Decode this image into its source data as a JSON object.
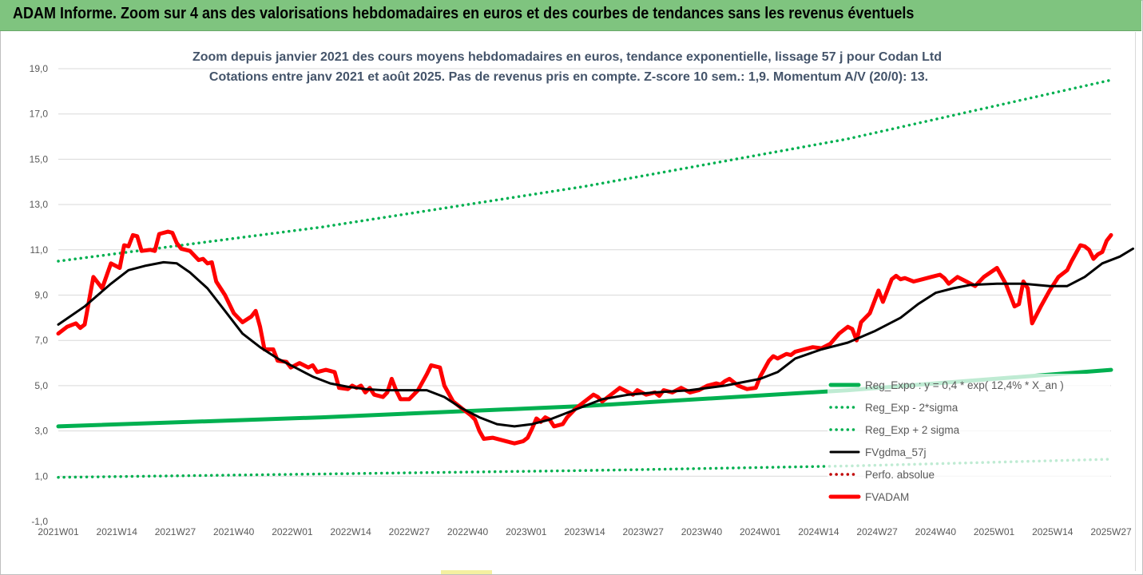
{
  "banner": {
    "title": "ADAM Informe. Zoom sur 4 ans des valorisations hebdomadaires en euros et des courbes de tendances sans les revenus éventuels"
  },
  "colors": {
    "banner_bg": "#7fc47f",
    "reg": "#00b050",
    "smooth": "#000000",
    "price": "#ff0000",
    "perfo": "#c00000",
    "title": "#44546a",
    "axis_text": "#595959"
  },
  "chart_data": {
    "type": "line",
    "title": "Zoom depuis janvier 2021 des cours moyens hebdomadaires en euros, tendance exponentielle, lissage 57 j pour Codan Ltd",
    "subtitle": "Cotations entre janv 2021 et août 2025. Pas de revenus pris en compte. Z-score 10 sem.: 1,9. Momentum A/V (20/0): 13.",
    "xlabel": "",
    "ylabel": "",
    "ylim": [
      -1,
      19
    ],
    "y_ticks": [
      "-1,0",
      "1,0",
      "3,0",
      "5,0",
      "7,0",
      "9,0",
      "11,0",
      "13,0",
      "15,0",
      "17,0",
      "19,0"
    ],
    "x_ticks": [
      "2021W01",
      "2021W14",
      "2021W27",
      "2021W40",
      "2022W01",
      "2022W14",
      "2022W27",
      "2022W40",
      "2023W01",
      "2023W14",
      "2023W27",
      "2023W40",
      "2024W01",
      "2024W14",
      "2024W27",
      "2024W40",
      "2025W01",
      "2025W14",
      "2025W27"
    ],
    "x_range_weeks": [
      0,
      240
    ],
    "grid": true,
    "legend_position": "lower-right",
    "series": [
      {
        "name": "Reg_Expo : y = 0,4 * exp( 12,4% * X_an )",
        "style": "solid-thick",
        "color": "#00b050",
        "points": [
          [
            0,
            3.2
          ],
          [
            60,
            3.6
          ],
          [
            120,
            4.1
          ],
          [
            180,
            4.8
          ],
          [
            240,
            5.7
          ]
        ]
      },
      {
        "name": "Reg_Exp - 2*sigma",
        "style": "dotted",
        "color": "#00b050",
        "points": [
          [
            0,
            0.95
          ],
          [
            60,
            1.1
          ],
          [
            120,
            1.25
          ],
          [
            180,
            1.45
          ],
          [
            240,
            1.75
          ]
        ]
      },
      {
        "name": "Reg_Exp + 2 sigma",
        "style": "dotted",
        "color": "#00b050",
        "points": [
          [
            0,
            10.5
          ],
          [
            60,
            12.0
          ],
          [
            120,
            13.8
          ],
          [
            180,
            15.9
          ],
          [
            240,
            18.5
          ]
        ]
      },
      {
        "name": "FVgdma_57j",
        "style": "solid",
        "color": "#000000",
        "points": [
          [
            0,
            7.7
          ],
          [
            6,
            8.5
          ],
          [
            12,
            9.5
          ],
          [
            16,
            10.1
          ],
          [
            20,
            10.3
          ],
          [
            24,
            10.45
          ],
          [
            27,
            10.4
          ],
          [
            30,
            10.0
          ],
          [
            34,
            9.3
          ],
          [
            38,
            8.3
          ],
          [
            42,
            7.3
          ],
          [
            46,
            6.7
          ],
          [
            50,
            6.2
          ],
          [
            54,
            5.8
          ],
          [
            58,
            5.4
          ],
          [
            62,
            5.1
          ],
          [
            66,
            4.95
          ],
          [
            70,
            4.85
          ],
          [
            74,
            4.8
          ],
          [
            80,
            4.8
          ],
          [
            84,
            4.8
          ],
          [
            88,
            4.5
          ],
          [
            92,
            4.0
          ],
          [
            96,
            3.6
          ],
          [
            100,
            3.3
          ],
          [
            104,
            3.2
          ],
          [
            108,
            3.3
          ],
          [
            112,
            3.5
          ],
          [
            116,
            3.8
          ],
          [
            120,
            4.1
          ],
          [
            124,
            4.4
          ],
          [
            130,
            4.6
          ],
          [
            136,
            4.7
          ],
          [
            144,
            4.8
          ],
          [
            152,
            5.0
          ],
          [
            160,
            5.3
          ],
          [
            164,
            5.6
          ],
          [
            168,
            6.2
          ],
          [
            174,
            6.6
          ],
          [
            180,
            6.9
          ],
          [
            186,
            7.4
          ],
          [
            192,
            8.0
          ],
          [
            196,
            8.6
          ],
          [
            200,
            9.1
          ],
          [
            204,
            9.3
          ],
          [
            208,
            9.45
          ],
          [
            214,
            9.5
          ],
          [
            220,
            9.5
          ],
          [
            226,
            9.4
          ],
          [
            230,
            9.4
          ],
          [
            234,
            9.8
          ],
          [
            238,
            10.4
          ],
          [
            242,
            10.7
          ],
          [
            245,
            11.05
          ]
        ]
      },
      {
        "name": "Perfo. absolue",
        "style": "dotted",
        "color": "#c00000",
        "points": []
      },
      {
        "name": "FVADAM",
        "style": "solid-thick",
        "color": "#ff0000",
        "points": [
          [
            0,
            7.3
          ],
          [
            2,
            7.6
          ],
          [
            4,
            7.75
          ],
          [
            5,
            7.55
          ],
          [
            6,
            7.7
          ],
          [
            8,
            9.8
          ],
          [
            10,
            9.3
          ],
          [
            12,
            10.4
          ],
          [
            14,
            10.2
          ],
          [
            15,
            11.2
          ],
          [
            16,
            11.15
          ],
          [
            17,
            11.65
          ],
          [
            18,
            11.6
          ],
          [
            19,
            10.95
          ],
          [
            21,
            11.0
          ],
          [
            22,
            10.95
          ],
          [
            23,
            11.7
          ],
          [
            25,
            11.8
          ],
          [
            26,
            11.75
          ],
          [
            27,
            11.3
          ],
          [
            28,
            11.05
          ],
          [
            30,
            10.95
          ],
          [
            32,
            10.55
          ],
          [
            33,
            10.6
          ],
          [
            34,
            10.4
          ],
          [
            35,
            10.45
          ],
          [
            36,
            9.6
          ],
          [
            38,
            9.0
          ],
          [
            40,
            8.2
          ],
          [
            42,
            7.8
          ],
          [
            44,
            8.05
          ],
          [
            45,
            8.3
          ],
          [
            46,
            7.6
          ],
          [
            47,
            6.6
          ],
          [
            49,
            6.6
          ],
          [
            50,
            6.1
          ],
          [
            52,
            6.05
          ],
          [
            53,
            5.8
          ],
          [
            55,
            6.0
          ],
          [
            57,
            5.8
          ],
          [
            58,
            5.9
          ],
          [
            59,
            5.6
          ],
          [
            61,
            5.7
          ],
          [
            63,
            5.6
          ],
          [
            64,
            4.9
          ],
          [
            66,
            4.85
          ],
          [
            67,
            5.0
          ],
          [
            68,
            4.9
          ],
          [
            69,
            5.0
          ],
          [
            70,
            4.7
          ],
          [
            71,
            4.9
          ],
          [
            72,
            4.6
          ],
          [
            74,
            4.5
          ],
          [
            75,
            4.7
          ],
          [
            76,
            5.3
          ],
          [
            77,
            4.8
          ],
          [
            78,
            4.4
          ],
          [
            80,
            4.4
          ],
          [
            82,
            4.8
          ],
          [
            84,
            5.5
          ],
          [
            85,
            5.9
          ],
          [
            87,
            5.8
          ],
          [
            88,
            5.0
          ],
          [
            90,
            4.3
          ],
          [
            92,
            4.0
          ],
          [
            94,
            3.7
          ],
          [
            95,
            3.5
          ],
          [
            96,
            3.0
          ],
          [
            97,
            2.65
          ],
          [
            99,
            2.7
          ],
          [
            101,
            2.6
          ],
          [
            103,
            2.5
          ],
          [
            104,
            2.45
          ],
          [
            106,
            2.55
          ],
          [
            107,
            2.7
          ],
          [
            108,
            3.1
          ],
          [
            109,
            3.55
          ],
          [
            110,
            3.4
          ],
          [
            111,
            3.6
          ],
          [
            112,
            3.5
          ],
          [
            113,
            3.2
          ],
          [
            115,
            3.3
          ],
          [
            116,
            3.6
          ],
          [
            118,
            4.0
          ],
          [
            120,
            4.3
          ],
          [
            122,
            4.6
          ],
          [
            123,
            4.5
          ],
          [
            124,
            4.3
          ],
          [
            126,
            4.6
          ],
          [
            128,
            4.9
          ],
          [
            130,
            4.7
          ],
          [
            131,
            4.6
          ],
          [
            132,
            4.8
          ],
          [
            134,
            4.6
          ],
          [
            136,
            4.7
          ],
          [
            137,
            4.55
          ],
          [
            138,
            4.8
          ],
          [
            140,
            4.7
          ],
          [
            142,
            4.9
          ],
          [
            144,
            4.7
          ],
          [
            146,
            4.8
          ],
          [
            148,
            5.0
          ],
          [
            150,
            5.1
          ],
          [
            151,
            5.05
          ],
          [
            152,
            5.2
          ],
          [
            153,
            5.3
          ],
          [
            155,
            5.0
          ],
          [
            157,
            4.85
          ],
          [
            159,
            4.9
          ],
          [
            160,
            5.4
          ],
          [
            162,
            6.1
          ],
          [
            163,
            6.3
          ],
          [
            164,
            6.2
          ],
          [
            166,
            6.4
          ],
          [
            167,
            6.35
          ],
          [
            168,
            6.5
          ],
          [
            170,
            6.6
          ],
          [
            172,
            6.7
          ],
          [
            174,
            6.65
          ],
          [
            176,
            6.85
          ],
          [
            178,
            7.3
          ],
          [
            180,
            7.6
          ],
          [
            181,
            7.5
          ],
          [
            182,
            7.0
          ],
          [
            183,
            7.8
          ],
          [
            185,
            8.2
          ],
          [
            187,
            9.2
          ],
          [
            188,
            8.7
          ],
          [
            190,
            9.7
          ],
          [
            191,
            9.85
          ],
          [
            192,
            9.7
          ],
          [
            193,
            9.75
          ],
          [
            195,
            9.6
          ],
          [
            197,
            9.7
          ],
          [
            199,
            9.8
          ],
          [
            201,
            9.9
          ],
          [
            202,
            9.75
          ],
          [
            203,
            9.5
          ],
          [
            205,
            9.8
          ],
          [
            207,
            9.6
          ],
          [
            209,
            9.4
          ],
          [
            211,
            9.8
          ],
          [
            214,
            10.2
          ],
          [
            216,
            9.5
          ],
          [
            217,
            9.0
          ],
          [
            218,
            8.5
          ],
          [
            219,
            8.6
          ],
          [
            220,
            9.6
          ],
          [
            221,
            9.3
          ],
          [
            222,
            7.75
          ],
          [
            224,
            8.5
          ],
          [
            226,
            9.2
          ],
          [
            228,
            9.8
          ],
          [
            230,
            10.1
          ],
          [
            231,
            10.5
          ],
          [
            233,
            11.2
          ],
          [
            234,
            11.15
          ],
          [
            235,
            11.0
          ],
          [
            236,
            10.6
          ],
          [
            237,
            10.8
          ],
          [
            238,
            10.9
          ],
          [
            239,
            11.4
          ],
          [
            240,
            11.65
          ]
        ]
      }
    ]
  }
}
